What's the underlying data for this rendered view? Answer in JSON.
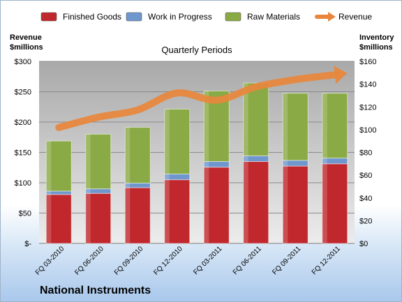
{
  "chart_data": {
    "type": "bar",
    "title": "Quarterly Periods",
    "company": "National Instruments",
    "categories": [
      "FQ 03-2010",
      "FQ 06-2010",
      "FQ 09-2010",
      "FQ 12-2010",
      "FQ 03-2011",
      "FQ 06-2011",
      "FQ 09-2011",
      "FQ 12-2011"
    ],
    "series": [
      {
        "name": "Finished Goods",
        "axis": "right",
        "stack": true,
        "color": "#c0282d",
        "values": [
          43,
          44,
          49,
          56,
          67,
          72,
          68,
          70
        ]
      },
      {
        "name": "Work in Progress",
        "axis": "right",
        "stack": true,
        "color": "#6f96cd",
        "values": [
          3,
          4,
          4,
          5,
          5,
          5,
          5,
          5
        ]
      },
      {
        "name": "Raw Materials",
        "axis": "right",
        "stack": true,
        "color": "#8aaa45",
        "values": [
          44,
          48,
          49,
          57,
          62,
          64,
          59,
          57
        ]
      },
      {
        "name": "Revenue",
        "axis": "left",
        "type": "line",
        "color": "#e8873c",
        "values": [
          191,
          208,
          220,
          248,
          236,
          258,
          270,
          278
        ]
      }
    ],
    "left_axis": {
      "label_lines": [
        "Revenue",
        "$millions"
      ],
      "ylim": [
        0,
        300
      ],
      "ticks": [
        0,
        50,
        100,
        150,
        200,
        250,
        300
      ],
      "tick_labels": [
        "$-",
        "$50",
        "$100",
        "$150",
        "$200",
        "$250",
        "$300"
      ]
    },
    "right_axis": {
      "label_lines": [
        "Inventory",
        "$millions"
      ],
      "ylim": [
        0,
        160
      ],
      "ticks": [
        0,
        20,
        40,
        60,
        80,
        100,
        120,
        140,
        160
      ],
      "tick_labels": [
        "$0",
        "$20",
        "$40",
        "$60",
        "$80",
        "$100",
        "$120",
        "$140",
        "$160"
      ]
    },
    "grid": true,
    "legend_position": "top"
  }
}
